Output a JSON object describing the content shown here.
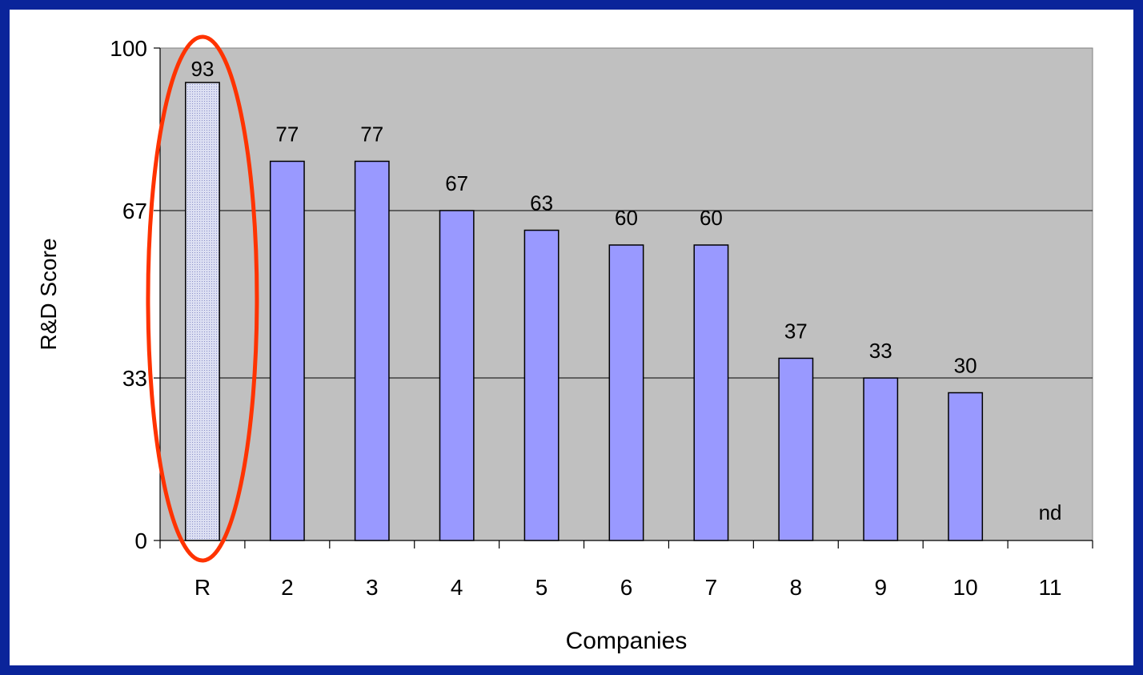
{
  "chart_data": {
    "type": "bar",
    "categories": [
      "R",
      "2",
      "3",
      "4",
      "5",
      "6",
      "7",
      "8",
      "9",
      "10",
      "11"
    ],
    "values": [
      93,
      77,
      77,
      67,
      63,
      60,
      60,
      37,
      33,
      30,
      null
    ],
    "data_labels": [
      "93",
      "77",
      "77",
      "67",
      "63",
      "60",
      "60",
      "37",
      "33",
      "30",
      "nd"
    ],
    "xlabel": "Companies",
    "ylabel": "R&D Score",
    "ylim": [
      0,
      100
    ],
    "yticks": [
      0,
      33,
      67,
      100
    ],
    "grid": true,
    "highlight_category": "R",
    "colors": {
      "background": "#0a249a",
      "plot_area": "#c0c0c0",
      "bar": "#9999ff",
      "highlight_bar": "#cfd2ee",
      "highlight_ring": "#ff3300"
    }
  }
}
